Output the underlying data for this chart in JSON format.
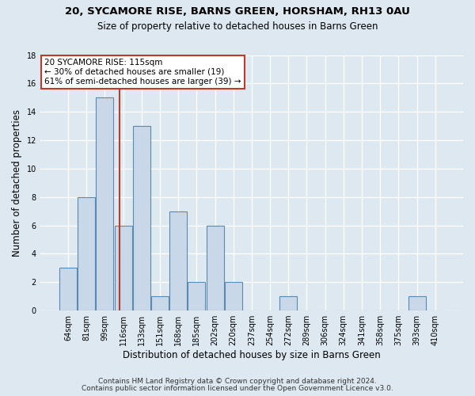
{
  "title1": "20, SYCAMORE RISE, BARNS GREEN, HORSHAM, RH13 0AU",
  "title2": "Size of property relative to detached houses in Barns Green",
  "xlabel": "Distribution of detached houses by size in Barns Green",
  "ylabel": "Number of detached properties",
  "categories": [
    "64sqm",
    "81sqm",
    "99sqm",
    "116sqm",
    "133sqm",
    "151sqm",
    "168sqm",
    "185sqm",
    "202sqm",
    "220sqm",
    "237sqm",
    "254sqm",
    "272sqm",
    "289sqm",
    "306sqm",
    "324sqm",
    "341sqm",
    "358sqm",
    "375sqm",
    "393sqm",
    "410sqm"
  ],
  "values": [
    3,
    8,
    15,
    6,
    13,
    1,
    7,
    2,
    6,
    2,
    0,
    0,
    1,
    0,
    0,
    0,
    0,
    0,
    0,
    1,
    0
  ],
  "bar_color": "#c8d8e8",
  "bar_edge_color": "#5a8ab0",
  "vline_x_index": 2.82,
  "vline_color": "#c0392b",
  "annotation_line1": "20 SYCAMORE RISE: 115sqm",
  "annotation_line2": "← 30% of detached houses are smaller (19)",
  "annotation_line3": "61% of semi-detached houses are larger (39) →",
  "annotation_box_color": "#c0392b",
  "ylim": [
    0,
    18
  ],
  "yticks": [
    0,
    2,
    4,
    6,
    8,
    10,
    12,
    14,
    16,
    18
  ],
  "background_color": "#dde8f0",
  "grid_color": "#ffffff",
  "fig_background": "#dde8f0",
  "footer1": "Contains HM Land Registry data © Crown copyright and database right 2024.",
  "footer2": "Contains public sector information licensed under the Open Government Licence v3.0.",
  "title1_fontsize": 9.5,
  "title2_fontsize": 8.5,
  "ylabel_fontsize": 8.5,
  "xlabel_fontsize": 8.5,
  "tick_fontsize": 7.0,
  "footer_fontsize": 6.5,
  "annotation_fontsize": 7.5
}
